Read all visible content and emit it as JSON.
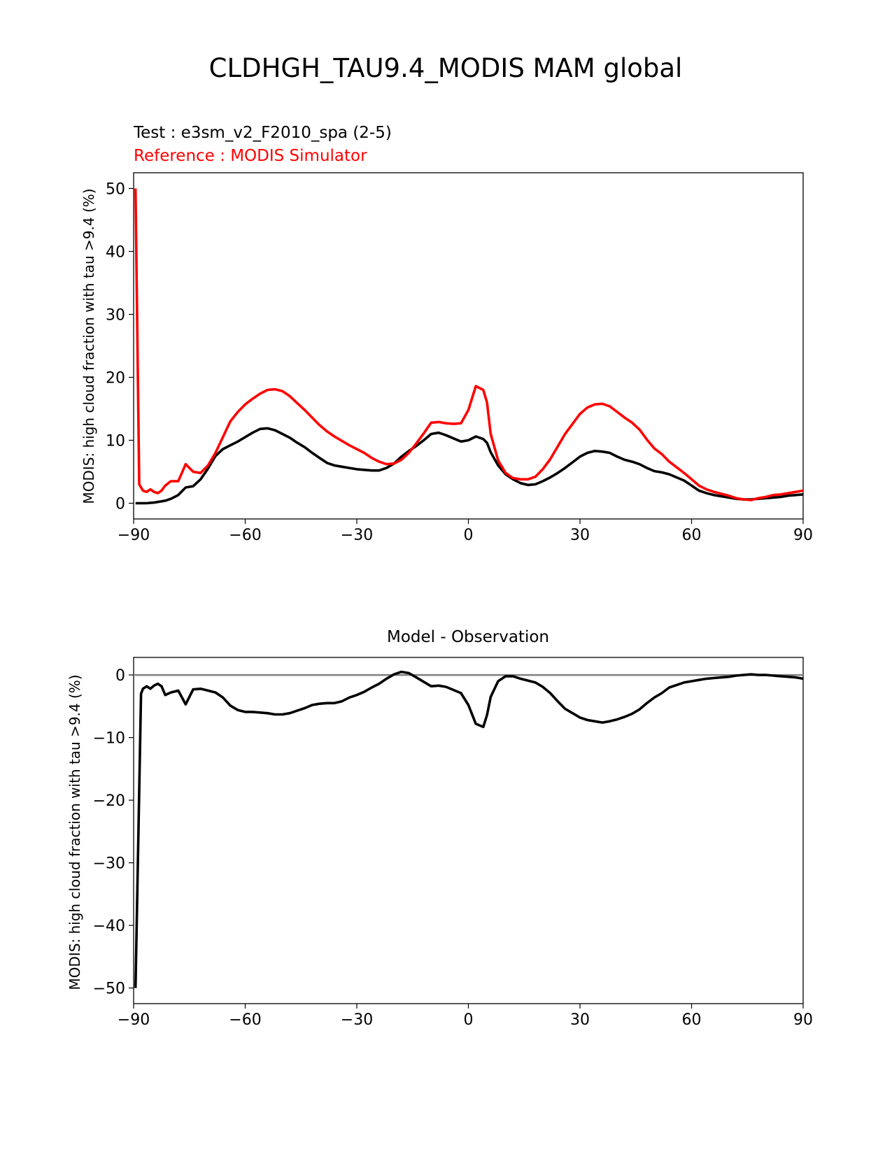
{
  "figure": {
    "title": "CLDHGH_TAU9.4_MODIS MAM global"
  },
  "top_panel": {
    "test_label": "Test : e3sm_v2_F2010_spa (2-5)",
    "reference_label": "Reference : MODIS Simulator",
    "ylabel": "MODIS: high cloud fraction with tau >9.4 (%)"
  },
  "bottom_panel": {
    "title": "Model - Observation",
    "ylabel": "MODIS: high cloud fraction with tau >9.4 (%)"
  },
  "colors": {
    "test": "#000000",
    "reference": "#ff0000",
    "diff": "#000000",
    "zero_line": "#808080"
  },
  "chart_data": [
    {
      "type": "line",
      "xlim": [
        -90,
        90
      ],
      "ylim": [
        -2.5,
        52.5
      ],
      "xticks": [
        -90,
        -60,
        -30,
        0,
        30,
        60,
        90
      ],
      "yticks": [
        0,
        10,
        20,
        30,
        40,
        50
      ],
      "x": [
        -89.5,
        -88.5,
        -87.5,
        -86.5,
        -85.5,
        -84.5,
        -83.5,
        -82.5,
        -81.5,
        -80,
        -78,
        -76,
        -74,
        -72,
        -70,
        -68,
        -66,
        -64,
        -62,
        -60,
        -58,
        -56,
        -54,
        -52,
        -50,
        -48,
        -46,
        -44,
        -42,
        -40,
        -38,
        -36,
        -34,
        -32,
        -30,
        -28,
        -26,
        -24,
        -22,
        -20,
        -18,
        -16,
        -14,
        -12,
        -10,
        -8,
        -6,
        -4,
        -2,
        0,
        2,
        4,
        5,
        6,
        8,
        10,
        12,
        14,
        16,
        18,
        20,
        22,
        24,
        26,
        28,
        30,
        32,
        34,
        36,
        38,
        40,
        42,
        44,
        46,
        48,
        50,
        52,
        54,
        56,
        58,
        60,
        62,
        64,
        66,
        68,
        70,
        72,
        74,
        76,
        78,
        80,
        82,
        84,
        86,
        88,
        90
      ],
      "series": [
        {
          "values": [
            0.0,
            0.0,
            0.0,
            0.0,
            0.05,
            0.1,
            0.2,
            0.3,
            0.4,
            0.7,
            1.3,
            2.5,
            2.7,
            3.8,
            5.5,
            7.5,
            8.6,
            9.2,
            9.8,
            10.5,
            11.2,
            11.8,
            11.9,
            11.6,
            11.0,
            10.4,
            9.6,
            8.9,
            8.0,
            7.2,
            6.4,
            6.0,
            5.8,
            5.6,
            5.4,
            5.3,
            5.2,
            5.2,
            5.6,
            6.3,
            7.4,
            8.3,
            9.1,
            10.0,
            11.0,
            11.2,
            10.8,
            10.3,
            9.8,
            10.0,
            10.6,
            10.2,
            9.6,
            8.1,
            6.0,
            4.6,
            3.8,
            3.2,
            2.9,
            3.0,
            3.5,
            4.1,
            4.8,
            5.6,
            6.5,
            7.4,
            8.0,
            8.3,
            8.2,
            8.0,
            7.4,
            6.9,
            6.6,
            6.2,
            5.6,
            5.1,
            4.9,
            4.6,
            4.1,
            3.6,
            2.8,
            2.0,
            1.6,
            1.3,
            1.1,
            0.9,
            0.7,
            0.6,
            0.6,
            0.7,
            0.8,
            0.9,
            1.0,
            1.2,
            1.3,
            1.4
          ]
        },
        {
          "values": [
            50.0,
            3.0,
            2.0,
            1.8,
            2.2,
            1.8,
            1.6,
            2.0,
            2.8,
            3.5,
            3.5,
            6.2,
            5.0,
            4.8,
            6.0,
            8.0,
            10.5,
            13.0,
            14.5,
            15.7,
            16.6,
            17.4,
            18.0,
            18.1,
            17.8,
            17.0,
            15.9,
            14.8,
            13.6,
            12.4,
            11.4,
            10.6,
            9.9,
            9.2,
            8.6,
            8.0,
            7.2,
            6.6,
            6.2,
            6.3,
            6.9,
            8.0,
            9.5,
            11.1,
            12.8,
            12.9,
            12.7,
            12.6,
            12.7,
            14.8,
            18.6,
            18.0,
            16.0,
            11.0,
            6.8,
            4.8,
            4.0,
            3.8,
            3.8,
            4.2,
            5.4,
            7.0,
            9.0,
            11.0,
            12.6,
            14.2,
            15.2,
            15.7,
            15.8,
            15.4,
            14.5,
            13.6,
            12.8,
            11.7,
            10.1,
            8.7,
            7.8,
            6.6,
            5.7,
            4.8,
            3.8,
            2.8,
            2.2,
            1.8,
            1.5,
            1.2,
            0.8,
            0.6,
            0.5,
            0.8,
            1.0,
            1.3,
            1.4,
            1.6,
            1.8,
            2.0
          ]
        }
      ]
    },
    {
      "type": "line",
      "xlim": [
        -90,
        90
      ],
      "ylim": [
        -52.5,
        2.8
      ],
      "xticks": [
        -90,
        -60,
        -30,
        0,
        30,
        60,
        90
      ],
      "yticks": [
        0,
        -10,
        -20,
        -30,
        -40,
        -50
      ],
      "x": [
        -89.5,
        -88,
        -87.5,
        -86.5,
        -85.5,
        -84.5,
        -83.5,
        -82.5,
        -81.5,
        -80,
        -78,
        -76,
        -74,
        -72,
        -70,
        -68,
        -66,
        -64,
        -62,
        -60,
        -58,
        -56,
        -54,
        -52,
        -50,
        -48,
        -46,
        -44,
        -42,
        -40,
        -38,
        -36,
        -34,
        -32,
        -30,
        -28,
        -26,
        -24,
        -22,
        -20,
        -18,
        -16,
        -14,
        -12,
        -10,
        -8,
        -6,
        -4,
        -2,
        0,
        2,
        4,
        5,
        6,
        8,
        10,
        12,
        14,
        16,
        18,
        20,
        22,
        24,
        26,
        28,
        30,
        32,
        34,
        36,
        38,
        40,
        42,
        44,
        46,
        48,
        50,
        52,
        54,
        56,
        58,
        60,
        62,
        64,
        66,
        68,
        70,
        72,
        74,
        76,
        78,
        80,
        82,
        84,
        86,
        88,
        90
      ],
      "series": [
        {
          "values": [
            -50.0,
            -3.0,
            -2.2,
            -1.8,
            -2.2,
            -1.7,
            -1.4,
            -1.8,
            -3.2,
            -2.8,
            -2.5,
            -4.7,
            -2.3,
            -2.2,
            -2.5,
            -2.8,
            -3.6,
            -4.9,
            -5.6,
            -5.9,
            -5.9,
            -6.0,
            -6.1,
            -6.3,
            -6.3,
            -6.1,
            -5.7,
            -5.3,
            -4.8,
            -4.6,
            -4.5,
            -4.5,
            -4.2,
            -3.6,
            -3.2,
            -2.7,
            -2.0,
            -1.4,
            -0.6,
            0.1,
            0.5,
            0.3,
            -0.4,
            -1.1,
            -1.8,
            -1.7,
            -1.9,
            -2.4,
            -2.9,
            -4.8,
            -7.8,
            -8.3,
            -6.4,
            -3.5,
            -1.0,
            -0.2,
            -0.2,
            -0.6,
            -0.9,
            -1.2,
            -1.9,
            -2.9,
            -4.2,
            -5.4,
            -6.1,
            -6.8,
            -7.2,
            -7.4,
            -7.6,
            -7.4,
            -7.1,
            -6.7,
            -6.2,
            -5.5,
            -4.5,
            -3.6,
            -2.9,
            -2.0,
            -1.6,
            -1.2,
            -1.0,
            -0.8,
            -0.6,
            -0.5,
            -0.4,
            -0.3,
            -0.1,
            0.0,
            0.1,
            0.0,
            0.0,
            -0.1,
            -0.2,
            -0.3,
            -0.4,
            -0.6
          ]
        }
      ]
    }
  ]
}
